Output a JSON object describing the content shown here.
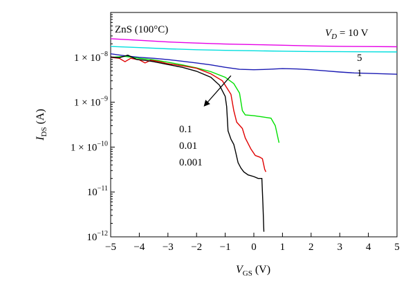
{
  "chart_data": {
    "type": "line",
    "title": "",
    "sample_label": "ZnS (100°C)",
    "x_axis": {
      "label_main": "V",
      "label_sub": "GS",
      "label_unit": "(V)",
      "range": [
        -5,
        5
      ],
      "ticks": [
        "−5",
        "−4",
        "−3",
        "−2",
        "−1",
        "0",
        "1",
        "2",
        "3",
        "4",
        "5"
      ]
    },
    "y_axis": {
      "label_main": "I",
      "label_sub": "DS",
      "label_unit": "(A)",
      "scale": "log",
      "range": [
        1e-12,
        1e-07
      ],
      "ticks": [
        {
          "mantissa": "1 × 10",
          "exp": "−8"
        },
        {
          "mantissa": "1 × 10",
          "exp": "−9"
        },
        {
          "mantissa": "1 × 10",
          "exp": "−10"
        },
        {
          "mantissa": "10",
          "exp": "−11"
        },
        {
          "mantissa": "10",
          "exp": "−12"
        }
      ]
    },
    "legend_annotations": {
      "vd_prefix": "V",
      "vd_sub": "D",
      "vd_suffix": " = 10 V",
      "labels": [
        "5",
        "1",
        "0.1",
        "0.01",
        "0.001"
      ]
    },
    "series": [
      {
        "color": "#e600e6",
        "points": [
          [
            -5,
            2.6e-08
          ],
          [
            -4,
            2.4e-08
          ],
          [
            -3,
            2.2e-08
          ],
          [
            -2,
            2.08e-08
          ],
          [
            -1,
            1.98e-08
          ],
          [
            0,
            1.92e-08
          ],
          [
            1,
            1.86e-08
          ],
          [
            2,
            1.8e-08
          ],
          [
            3,
            1.76e-08
          ],
          [
            4,
            1.74e-08
          ],
          [
            5,
            1.72e-08
          ]
        ]
      },
      {
        "color": "#00dede",
        "points": [
          [
            -5,
            1.75e-08
          ],
          [
            -4,
            1.65e-08
          ],
          [
            -3,
            1.55e-08
          ],
          [
            -2,
            1.48e-08
          ],
          [
            -1,
            1.43e-08
          ],
          [
            0,
            1.4e-08
          ],
          [
            1,
            1.37e-08
          ],
          [
            2,
            1.35e-08
          ],
          [
            3,
            1.34e-08
          ],
          [
            4,
            1.33e-08
          ],
          [
            5,
            1.32e-08
          ]
        ]
      },
      {
        "color": "#1a1ab3",
        "points": [
          [
            -5,
            1.2e-08
          ],
          [
            -4.5,
            1.08e-08
          ],
          [
            -4,
            1e-08
          ],
          [
            -3.5,
            9.5e-09
          ],
          [
            -3,
            8.9e-09
          ],
          [
            -2.5,
            8.2e-09
          ],
          [
            -2,
            7.5e-09
          ],
          [
            -1.5,
            6.8e-09
          ],
          [
            -1,
            6e-09
          ],
          [
            -0.5,
            5.4e-09
          ],
          [
            0,
            5.3e-09
          ],
          [
            0.5,
            5.4e-09
          ],
          [
            1,
            5.6e-09
          ],
          [
            1.5,
            5.5e-09
          ],
          [
            2,
            5.3e-09
          ],
          [
            2.5,
            5e-09
          ],
          [
            3,
            4.7e-09
          ],
          [
            3.5,
            4.5e-09
          ],
          [
            4,
            4.4e-09
          ],
          [
            4.5,
            4.3e-09
          ],
          [
            5,
            4.2e-09
          ]
        ]
      },
      {
        "color": "#00e000",
        "points": [
          [
            -5,
            1e-08
          ],
          [
            -4.5,
            1.05e-08
          ],
          [
            -4,
            9.5e-09
          ],
          [
            -3.5,
            8.8e-09
          ],
          [
            -3,
            7.8e-09
          ],
          [
            -2.5,
            6.8e-09
          ],
          [
            -2,
            5.8e-09
          ],
          [
            -1.5,
            4.8e-09
          ],
          [
            -1,
            3.6e-09
          ],
          [
            -0.7,
            2.6e-09
          ],
          [
            -0.5,
            1.6e-09
          ],
          [
            -0.4,
            6.5e-10
          ],
          [
            -0.3,
            5.2e-10
          ],
          [
            0,
            5e-10
          ],
          [
            0.3,
            4.7e-10
          ],
          [
            0.6,
            4.4e-10
          ],
          [
            0.75,
            3e-10
          ],
          [
            0.88,
            1.25e-10
          ]
        ]
      },
      {
        "color": "#e00000",
        "points": [
          [
            -5,
            1e-08
          ],
          [
            -4.7,
            9.5e-09
          ],
          [
            -4.5,
            8e-09
          ],
          [
            -4.3,
            9.5e-09
          ],
          [
            -4,
            8.8e-09
          ],
          [
            -3.8,
            7.5e-09
          ],
          [
            -3.6,
            8.6e-09
          ],
          [
            -3.3,
            8e-09
          ],
          [
            -3,
            7.2e-09
          ],
          [
            -2.5,
            6.5e-09
          ],
          [
            -2,
            5.7e-09
          ],
          [
            -1.5,
            4.3e-09
          ],
          [
            -1.1,
            3e-09
          ],
          [
            -0.8,
            1.5e-09
          ],
          [
            -0.7,
            6.5e-10
          ],
          [
            -0.6,
            3.6e-10
          ],
          [
            -0.4,
            2.6e-10
          ],
          [
            -0.3,
            1.6e-10
          ],
          [
            -0.1,
            9e-11
          ],
          [
            0.05,
            6.5e-11
          ],
          [
            0.2,
            6e-11
          ],
          [
            0.3,
            5.5e-11
          ],
          [
            0.38,
            3.2e-11
          ],
          [
            0.42,
            2.8e-11
          ]
        ]
      },
      {
        "color": "#000000",
        "points": [
          [
            -5,
            1.02e-08
          ],
          [
            -4.7,
            9.8e-09
          ],
          [
            -4.4,
            1.12e-08
          ],
          [
            -4.1,
            9e-09
          ],
          [
            -3.8,
            8.6e-09
          ],
          [
            -3.5,
            8e-09
          ],
          [
            -3,
            6.9e-09
          ],
          [
            -2.5,
            6e-09
          ],
          [
            -2,
            4.9e-09
          ],
          [
            -1.5,
            3.6e-09
          ],
          [
            -1.2,
            2.4e-09
          ],
          [
            -1,
            1.35e-09
          ],
          [
            -0.95,
            8e-10
          ],
          [
            -0.9,
            2.3e-10
          ],
          [
            -0.8,
            1.5e-10
          ],
          [
            -0.7,
            1.15e-10
          ],
          [
            -0.65,
            8.5e-11
          ],
          [
            -0.55,
            4.5e-11
          ],
          [
            -0.45,
            3.4e-11
          ],
          [
            -0.35,
            2.8e-11
          ],
          [
            -0.2,
            2.4e-11
          ],
          [
            0,
            2.2e-11
          ],
          [
            0.15,
            2e-11
          ],
          [
            0.28,
            2e-11
          ],
          [
            0.32,
            5e-12
          ],
          [
            0.35,
            1.3e-12
          ]
        ]
      }
    ],
    "arrow": {
      "from": [
        -0.8,
        3.9e-09
      ],
      "to": [
        -1.75,
        8e-10
      ]
    }
  }
}
